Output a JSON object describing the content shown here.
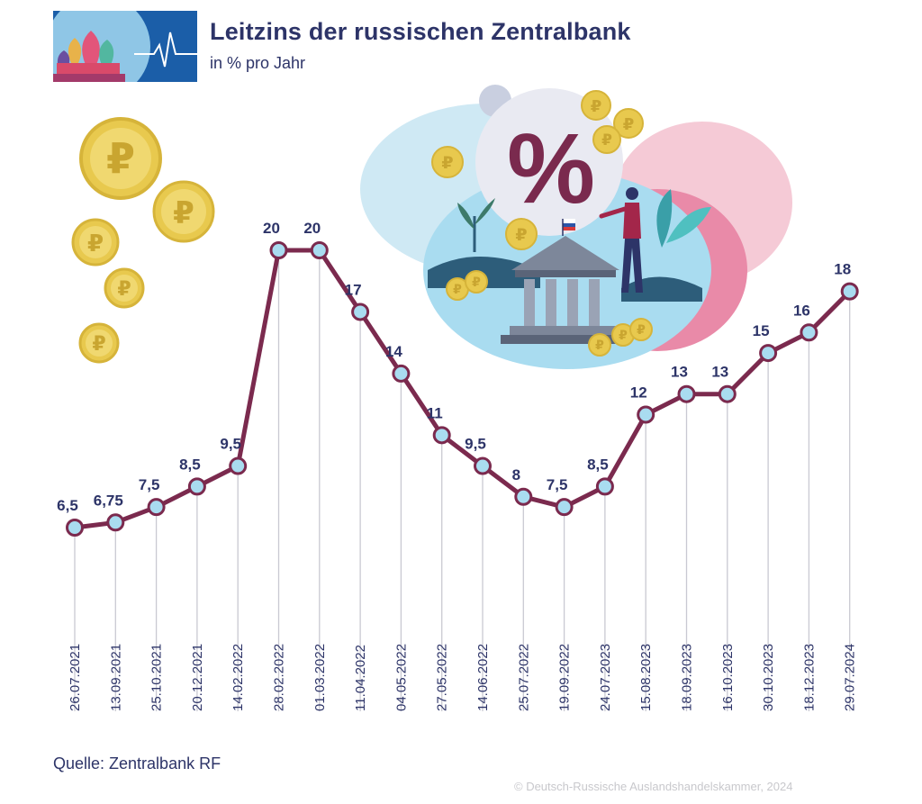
{
  "header": {
    "title": "Leitzins der russischen Zentralbank",
    "subtitle": "in % pro Jahr"
  },
  "footer": {
    "source": "Quelle: Zentralbank RF",
    "copyright": "© Deutsch-Russische Auslandshandelskammer, 2024"
  },
  "illustration": {
    "percent_sign": "%",
    "coin_symbol": "₽"
  },
  "colors": {
    "line": "#7b2a4e",
    "marker_fill": "#a9dcf0",
    "guide": "#c9c9d2",
    "text": "#2d3468"
  },
  "chart_data": {
    "type": "line",
    "title": "Leitzins der russischen Zentralbank",
    "ylabel": "in % pro Jahr",
    "xlabel": "",
    "grid": false,
    "ylim": [
      6.5,
      18
    ],
    "categories": [
      "26.07.2021",
      "13.09.2021",
      "25.10.2021",
      "20.12.2021",
      "14.02.2022",
      "28.02.2022",
      "01.03.2022",
      "11.04.2022",
      "04.05.2022",
      "27.05.2022",
      "14.06.2022",
      "25.07.2022",
      "19.09.2022",
      "24.07.2023",
      "15.08.2023",
      "18.09.2023",
      "16.10.2023",
      "30.10.2023",
      "18.12.2023",
      "29.07.2024"
    ],
    "values": [
      6.5,
      6.75,
      7.5,
      8.5,
      9.5,
      20,
      20,
      17,
      14,
      11,
      9.5,
      8,
      7.5,
      8.5,
      12,
      13,
      13,
      15,
      16,
      18
    ],
    "value_labels": [
      "6,5",
      "6,75",
      "7,5",
      "8,5",
      "9,5",
      "20",
      "20",
      "17",
      "14",
      "11",
      "9,5",
      "8",
      "7,5",
      "8,5",
      "12",
      "13",
      "13",
      "15",
      "16",
      "18"
    ]
  }
}
